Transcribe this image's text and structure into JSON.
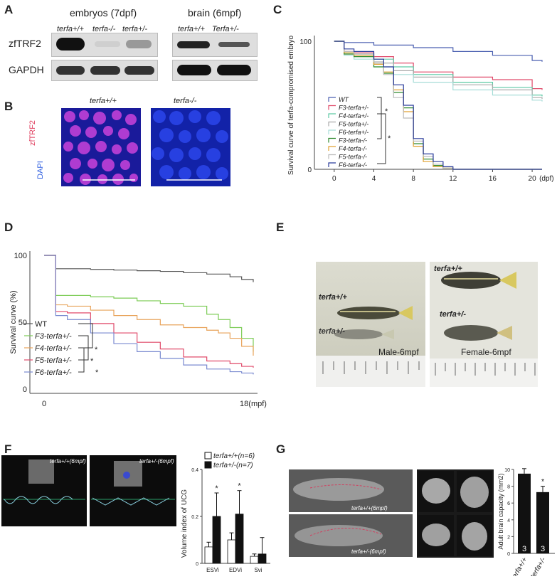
{
  "panel_letters": [
    "A",
    "B",
    "C",
    "D",
    "E",
    "F",
    "G"
  ],
  "panelA": {
    "group1_title": "embryos (7dpf)",
    "group2_title": "brain (6mpf)",
    "lanes1": [
      "terfa+/+",
      "terfa-/-",
      "terfa+/-"
    ],
    "lanes2": [
      "terfa+/+",
      "Terfa+/-"
    ],
    "row_labels": [
      "zfTRF2",
      "GAPDH"
    ]
  },
  "panelB": {
    "titles": [
      "terfa+/+",
      "terfa-/-"
    ],
    "stain1": "zfTRF2",
    "stain2": "DAPI"
  },
  "panelC": {
    "ylabel": "Survival curve of terfa-compromised embryo",
    "legend": [
      "WT",
      "F3-terfa+/-",
      "F4-terfa+/-",
      "F5-terfa+/-",
      "F6-terfa+/-",
      "F3-terfa-/-",
      "F4-terfa-/-",
      "F5-terfa-/-",
      "F6-terfa-/-"
    ],
    "xunit": "(dpf)",
    "sig": [
      "*",
      "*"
    ]
  },
  "panelD": {
    "ylabel": "Survival curve (%)",
    "legend": [
      "WT",
      "F3-terfa+/-",
      "F4-terfa+/-",
      "F5-terfa+/-",
      "F6-terfa+/-"
    ],
    "x_end_label": "18(mpf)",
    "sig": [
      "*",
      "*",
      "*"
    ]
  },
  "panelE": {
    "labels": [
      "terfa+/+",
      "terfa+/-",
      "Male-6mpf",
      "terfa+/+",
      "terfa+/-",
      "Female-6mpf"
    ]
  },
  "panelF": {
    "screen_labels": [
      "terfa+/+(6mpf)",
      "terfa+/-(6mpf)"
    ],
    "sig": [
      "*",
      "*"
    ]
  },
  "panelG": {
    "xray_labels": [
      "terfa+/+(6mpf)",
      "terfa+/-(6mpf)"
    ],
    "sig": "*"
  },
  "colors": {
    "wt": "#4a5fb0",
    "f3het": "#e04a6a",
    "f4het": "#5dc9a5",
    "f5het": "#aaaaaa",
    "f6het": "#a7ddd8",
    "f3hom": "#2e8a2e",
    "f4hom": "#e0a030",
    "f5hom": "#bbbbbb",
    "f6hom": "#283a9a",
    "d_wt": "#555555",
    "d_f3": "#7ccc55",
    "d_f4": "#e8a35a",
    "d_f5": "#e04a6a",
    "d_f6": "#7a8ad0"
  },
  "chart_data": [
    {
      "type": "line",
      "title": "",
      "xlabel": "(dpf)",
      "ylabel": "Survival curve of terfa-compromised embryo",
      "xlim": [
        -2,
        21
      ],
      "ylim": [
        0,
        100
      ],
      "x_ticks": [
        0,
        4,
        8,
        12,
        16,
        20
      ],
      "y_ticks": [
        0,
        100
      ],
      "series": [
        {
          "name": "WT",
          "x": [
            0,
            1,
            4,
            8,
            12,
            16,
            20,
            21
          ],
          "values": [
            100,
            99,
            97,
            95,
            92,
            89,
            85,
            84
          ]
        },
        {
          "name": "F3-terfa+/-",
          "x": [
            0,
            1,
            2,
            4,
            6,
            8,
            12,
            16,
            20,
            21
          ],
          "values": [
            100,
            92,
            91,
            88,
            83,
            76,
            72,
            70,
            63,
            62
          ]
        },
        {
          "name": "F4-terfa+/-",
          "x": [
            0,
            1,
            2,
            4,
            6,
            8,
            12,
            16,
            20,
            21
          ],
          "values": [
            100,
            91,
            90,
            86,
            80,
            74,
            68,
            64,
            58,
            57
          ]
        },
        {
          "name": "F5-terfa+/-",
          "x": [
            0,
            1,
            2,
            4,
            6,
            8,
            12,
            16,
            20,
            21
          ],
          "values": [
            100,
            90,
            88,
            83,
            77,
            72,
            66,
            62,
            56,
            55
          ]
        },
        {
          "name": "F6-terfa+/-",
          "x": [
            0,
            1,
            2,
            4,
            6,
            8,
            12,
            16,
            20,
            21
          ],
          "values": [
            100,
            89,
            86,
            80,
            74,
            68,
            62,
            58,
            54,
            53
          ]
        },
        {
          "name": "F3-terfa-/-",
          "x": [
            0,
            1,
            2,
            4,
            5,
            6,
            7,
            8,
            9,
            10,
            11,
            12,
            21
          ],
          "values": [
            100,
            90,
            88,
            80,
            75,
            60,
            48,
            20,
            8,
            3,
            1,
            0,
            0
          ]
        },
        {
          "name": "F4-terfa-/-",
          "x": [
            0,
            1,
            2,
            4,
            5,
            6,
            7,
            8,
            9,
            10,
            11,
            12,
            21
          ],
          "values": [
            100,
            91,
            89,
            82,
            76,
            62,
            45,
            18,
            6,
            2,
            1,
            0,
            0
          ]
        },
        {
          "name": "F5-terfa-/-",
          "x": [
            0,
            1,
            2,
            4,
            5,
            6,
            7,
            8,
            9,
            10,
            11,
            12,
            21
          ],
          "values": [
            100,
            92,
            90,
            84,
            74,
            56,
            40,
            22,
            10,
            4,
            1,
            0,
            0
          ]
        },
        {
          "name": "F6-terfa-/-",
          "x": [
            0,
            1,
            2,
            4,
            5,
            6,
            7,
            8,
            9,
            10,
            11,
            12,
            21
          ],
          "values": [
            100,
            94,
            92,
            86,
            80,
            66,
            50,
            24,
            12,
            6,
            2,
            0,
            0
          ]
        }
      ]
    },
    {
      "type": "line",
      "title": "",
      "xlabel": "18(mpf)",
      "ylabel": "Survival curve (%)",
      "xlim": [
        0,
        18
      ],
      "ylim": [
        0,
        100
      ],
      "y_ticks": [
        0,
        50,
        100
      ],
      "x_ticks": [
        0,
        18
      ],
      "series": [
        {
          "name": "WT",
          "x": [
            0,
            1,
            2,
            4,
            6,
            8,
            10,
            12,
            14,
            16,
            17,
            18
          ],
          "values": [
            100,
            90,
            90,
            89.5,
            89,
            88.5,
            88,
            87,
            86,
            84,
            82,
            80
          ]
        },
        {
          "name": "F3-terfa+/-",
          "x": [
            0,
            1,
            2,
            4,
            6,
            8,
            10,
            12,
            14,
            15,
            16,
            17,
            18
          ],
          "values": [
            100,
            70,
            70,
            69,
            68,
            66,
            64,
            62,
            56,
            52,
            46,
            38,
            28
          ]
        },
        {
          "name": "F4-terfa+/-",
          "x": [
            0,
            1,
            2,
            4,
            6,
            8,
            10,
            12,
            14,
            15,
            16,
            17,
            18
          ],
          "values": [
            100,
            63,
            62,
            59,
            55,
            52,
            48,
            46,
            44,
            42,
            38,
            32,
            25
          ]
        },
        {
          "name": "F5-terfa+/-",
          "x": [
            0,
            1,
            2,
            4,
            6,
            8,
            10,
            12,
            14,
            16,
            17,
            18
          ],
          "values": [
            100,
            58,
            57,
            49,
            42,
            35,
            30,
            24,
            21,
            19,
            17,
            16
          ]
        },
        {
          "name": "F6-terfa+/-",
          "x": [
            0,
            1,
            2,
            4,
            6,
            8,
            10,
            12,
            14,
            16,
            17,
            18
          ],
          "values": [
            100,
            55,
            52,
            42,
            34,
            28,
            23,
            18,
            15,
            13,
            12,
            11
          ]
        }
      ]
    },
    {
      "type": "bar",
      "title": "",
      "xlabel": "",
      "ylabel": "Volume index of UCG",
      "ylim": [
        0,
        0.4
      ],
      "y_ticks": [
        0,
        0.2,
        0.4
      ],
      "categories": [
        "ESVi",
        "EDVi",
        "Svi"
      ],
      "series": [
        {
          "name": "terfa+/+(n=6)",
          "values": [
            0.07,
            0.1,
            0.03
          ],
          "errors": [
            0.02,
            0.03,
            0.01
          ]
        },
        {
          "name": "terfa+/-(n=7)",
          "values": [
            0.2,
            0.21,
            0.04
          ],
          "errors": [
            0.1,
            0.1,
            0.07
          ]
        }
      ],
      "significance": [
        "*",
        "*",
        ""
      ]
    },
    {
      "type": "bar",
      "title": "",
      "xlabel": "",
      "ylabel": "Adult brain capacity (mm2)",
      "ylim": [
        0,
        10
      ],
      "y_ticks": [
        0,
        2,
        4,
        6,
        8,
        10
      ],
      "categories": [
        "terfa+/+",
        "terfa+/-"
      ],
      "values": [
        9.5,
        7.3
      ],
      "errors": [
        0.6,
        0.7
      ],
      "n_labels": [
        "3",
        "3"
      ],
      "significance": [
        "",
        "*"
      ]
    }
  ]
}
